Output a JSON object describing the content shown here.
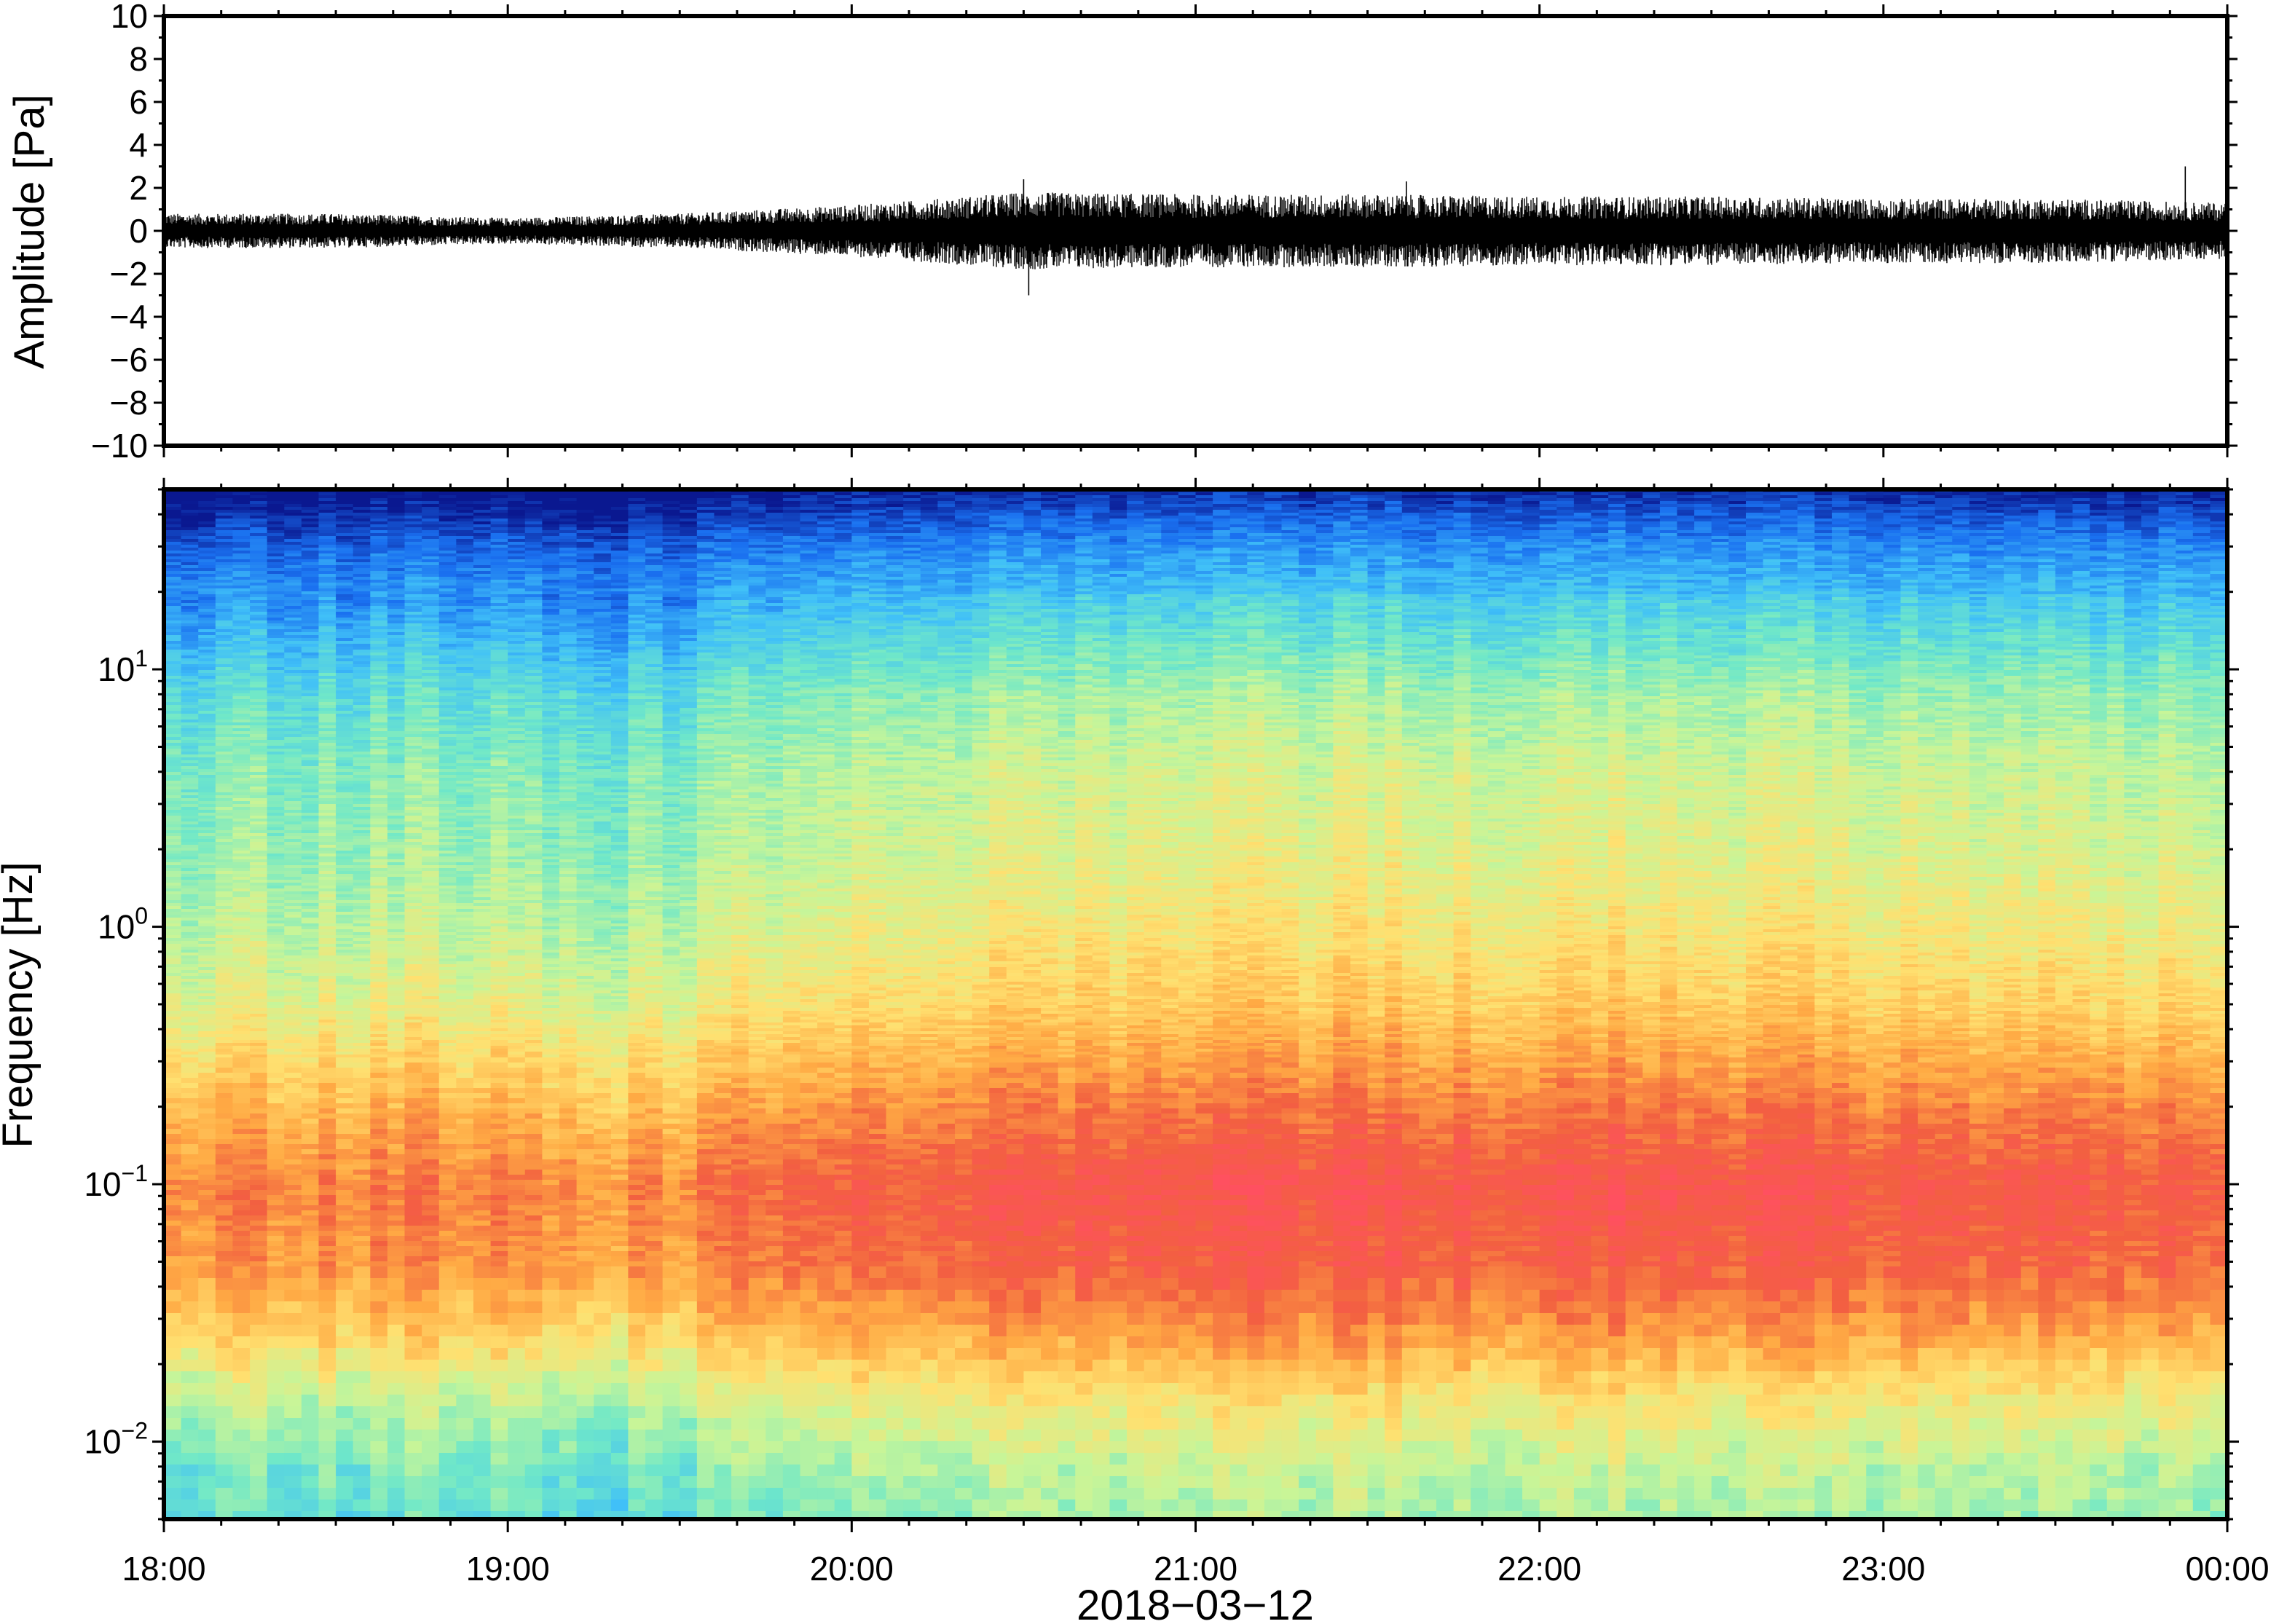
{
  "chart_data": [
    {
      "type": "line",
      "panel": "waveform",
      "ylabel": "Amplitude [Pa]",
      "ylim": [
        -10,
        10
      ],
      "yticks": [
        10,
        8,
        6,
        4,
        2,
        0,
        -2,
        -4,
        -6,
        -8,
        -10
      ],
      "ytick_labels": [
        "10",
        "8",
        "6",
        "4",
        "2",
        "0",
        "−2",
        "−4",
        "−6",
        "−8",
        "−10"
      ],
      "x_start": "18:00",
      "x_end": "00:00",
      "envelope": {
        "time": [
          "18:00",
          "18:30",
          "19:00",
          "19:30",
          "20:00",
          "20:20",
          "20:30",
          "21:00",
          "21:30",
          "22:00",
          "22:30",
          "23:00",
          "23:30",
          "00:00"
        ],
        "max_abs_pa": [
          0.8,
          0.8,
          0.6,
          0.8,
          1.2,
          1.6,
          1.8,
          1.7,
          1.7,
          1.6,
          1.6,
          1.5,
          1.5,
          1.3
        ]
      },
      "peaks": [
        {
          "time": "20:30",
          "value": 2.4
        },
        {
          "time": "20:30",
          "value": -3.0
        },
        {
          "time": "21:35",
          "value": 2.3
        },
        {
          "time": "23:50",
          "value": 3.0
        }
      ],
      "grid": false
    },
    {
      "type": "heatmap",
      "panel": "spectrogram",
      "ylabel": "Frequency [Hz]",
      "yscale": "log",
      "ylim": [
        0.005,
        50
      ],
      "yticks": [
        10,
        1,
        0.1,
        0.01
      ],
      "ytick_labels": [
        {
          "base": "10",
          "exp": "1"
        },
        {
          "base": "10",
          "exp": "0"
        },
        {
          "base": "10",
          "exp": "−1"
        },
        {
          "base": "10",
          "exp": "−2"
        }
      ],
      "x_range": [
        "18:00",
        "00:00"
      ],
      "xlabel": "2018−03−12",
      "xticks": [
        "18:00",
        "19:00",
        "20:00",
        "21:00",
        "22:00",
        "23:00",
        "00:00"
      ],
      "colormap": "rainbow",
      "colormap_stops": [
        "#ff5060",
        "#f26040",
        "#ffaa44",
        "#ffe070",
        "#c8f598",
        "#70e8c8",
        "#40c0f8",
        "#1a70f0",
        "#0a1890"
      ],
      "level_profile": {
        "frequency_hz": [
          50,
          30,
          15,
          8,
          4,
          2,
          1,
          0.5,
          0.2,
          0.1,
          0.05,
          0.03,
          0.015,
          0.008,
          0.005
        ],
        "relative_level": [
          0.0,
          0.15,
          0.28,
          0.4,
          0.47,
          0.5,
          0.55,
          0.62,
          0.78,
          0.88,
          0.84,
          0.74,
          0.55,
          0.44,
          0.4
        ]
      },
      "time_variation": {
        "time": [
          "18:00",
          "19:00",
          "19:15",
          "20:00",
          "21:00",
          "22:00",
          "23:00",
          "00:00"
        ],
        "relative_offset": [
          -0.06,
          -0.04,
          -0.1,
          0.03,
          0.07,
          0.06,
          0.05,
          0.02
        ]
      },
      "grid": false
    }
  ]
}
